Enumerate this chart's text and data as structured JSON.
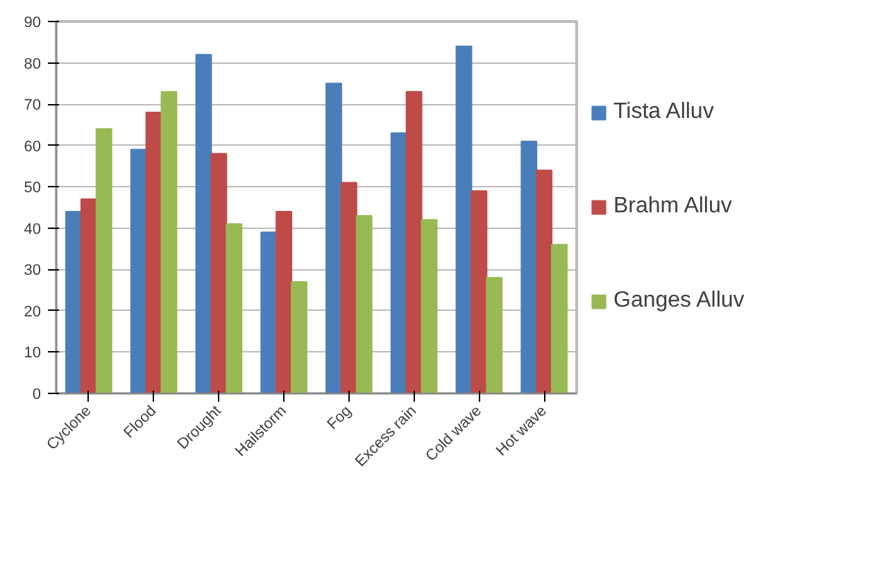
{
  "chart_data": {
    "type": "bar",
    "categories": [
      "Cyclone",
      "Flood",
      "Drought",
      "Hailstorm",
      "Fog",
      "Excess rain",
      "Cold wave",
      "Hot wave"
    ],
    "series": [
      {
        "name": "Tista Alluv",
        "color": "#4a7ebb",
        "values": [
          44,
          59,
          82,
          39,
          75,
          63,
          84,
          61
        ]
      },
      {
        "name": "Brahm Alluv",
        "color": "#be4b48",
        "values": [
          47,
          68,
          58,
          44,
          51,
          73,
          49,
          54
        ]
      },
      {
        "name": "Ganges Alluv",
        "color": "#98b954",
        "values": [
          64,
          73,
          41,
          27,
          43,
          42,
          28,
          36
        ]
      }
    ],
    "ylim": [
      0,
      90
    ],
    "yticks": [
      0,
      10,
      20,
      30,
      40,
      50,
      60,
      70,
      80,
      90
    ],
    "grid": "y",
    "legend": "right"
  }
}
